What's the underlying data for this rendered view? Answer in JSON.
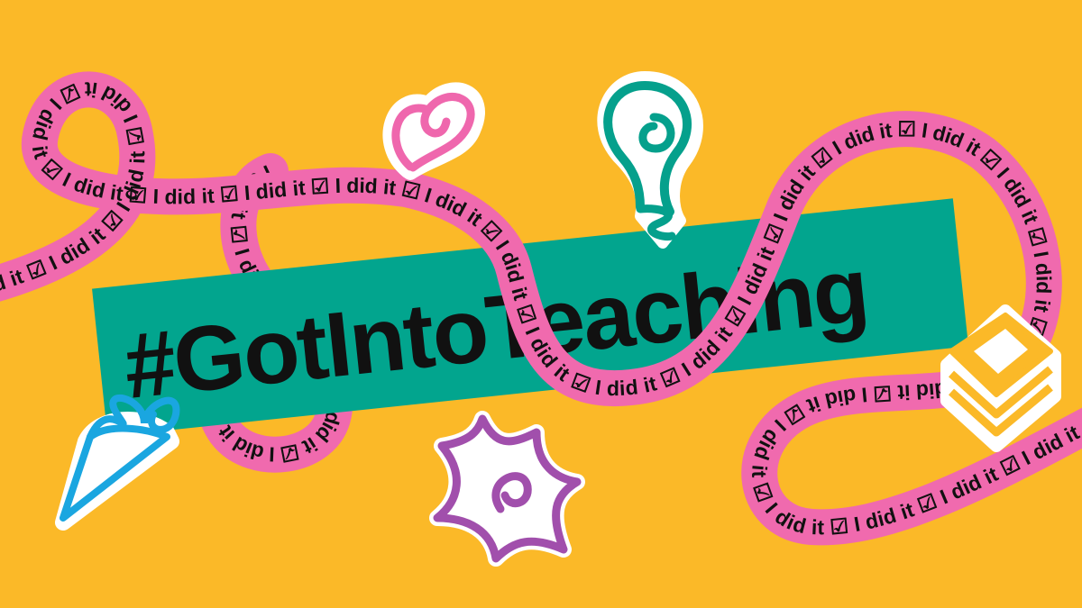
{
  "banner": {
    "hashtag": "#GotIntoTeaching"
  },
  "ribbon": {
    "phrase": "I did it ☑ ",
    "repeated": "I did it ☑ I did it ☑ I did it ☑ I did it ☑ I did it ☑ I did it ☑ I did it ☑ I did it ☑ I did it ☑ I did it ☑ I did it ☑ I did it ☑ I did it ☑ I did it ☑ I did it ☑ I did it ☑ I did it ☑ I did it ☑ I did it ☑ I did it ☑ I did it ☑ I did it ☑ I did it ☑ I did it ☑ I did it ☑ I did it ☑ I did it ☑ I did it ☑ I did it ☑ I did it ☑ I did it ☑ I did it ☑ I did it ☑ I did it ☑ I did it ☑ I did it ☑ I did it ☑ I did it ☑ I did it ☑ I did it ☑ "
  },
  "colors": {
    "background": "#fbb928",
    "ribbon": "#f06aae",
    "banner": "#02a58e",
    "text": "#111111",
    "heart": "#ef67ad",
    "bulb": "#05a08c",
    "star": "#a14fac",
    "cone": "#1aa6e0",
    "stack": "#fbb928"
  },
  "stickers": [
    {
      "name": "heart-icon"
    },
    {
      "name": "lightbulb-icon"
    },
    {
      "name": "star-icon"
    },
    {
      "name": "ice-cream-cone-icon"
    },
    {
      "name": "stack-icon"
    }
  ]
}
